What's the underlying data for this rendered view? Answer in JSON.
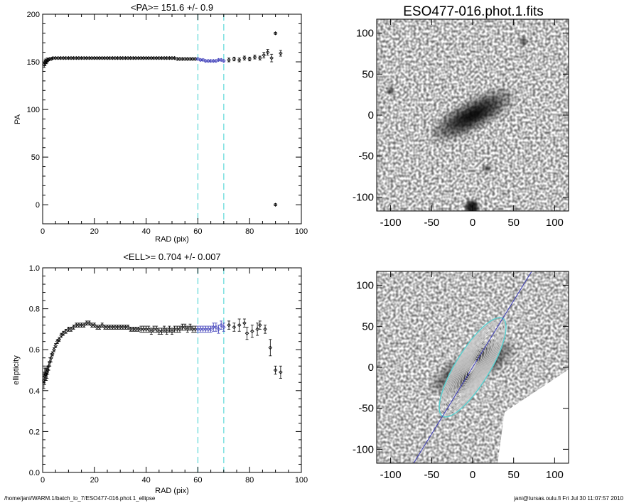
{
  "footer": {
    "left": "/home/jani/WARM.1/batch_lo_7/ESO477-016.phot.1_ellipse",
    "right": "jani@tursas.oulu.fi  Fri Jul 30 11:07:57 2010"
  },
  "colors": {
    "dashed_lines": "#7fe0e0",
    "fit_points": "#3b3bb8",
    "ellipse_inner": "#c8c8c8",
    "ellipse_outer": "#5ad0d0"
  },
  "chart_data": [
    {
      "type": "scatter",
      "title": "<PA>= 151.6 +/-    0.9",
      "xlabel": "RAD (pix)",
      "ylabel": "PA",
      "xlim": [
        0,
        100
      ],
      "ylim": [
        -20,
        200
      ],
      "xticks": [
        "0",
        "20",
        "40",
        "60",
        "80",
        "100"
      ],
      "yticks": [
        "0",
        "50",
        "100",
        "150",
        "200"
      ],
      "vlines": [
        60,
        70
      ],
      "fit_range": [
        60,
        70
      ],
      "x": [
        0.6,
        0.9,
        1.2,
        1.5,
        1.8,
        2.2,
        2.7,
        3.3,
        4,
        5,
        6,
        7,
        8,
        9,
        10,
        11,
        12,
        13,
        14,
        15,
        16,
        17,
        18,
        19,
        20,
        21,
        22,
        23,
        24,
        25,
        26,
        27,
        28,
        29,
        30,
        31,
        32,
        33,
        34,
        35,
        36,
        37,
        38,
        39,
        40,
        41,
        42,
        43,
        44,
        45,
        46,
        47,
        48,
        49,
        50,
        51,
        52,
        53,
        54,
        55,
        56,
        57,
        58,
        59,
        60,
        61,
        62,
        63,
        64,
        65,
        66,
        67,
        68,
        69,
        70,
        72,
        74,
        76,
        78,
        80,
        82,
        84,
        85.5,
        87,
        88.5,
        90,
        90,
        92
      ],
      "y": [
        147,
        149,
        151,
        150,
        152,
        152,
        153,
        153,
        154,
        154,
        154,
        154,
        154,
        154,
        154,
        154,
        154,
        154,
        154,
        154,
        154,
        154,
        154,
        154,
        154,
        154,
        154,
        154,
        154,
        154,
        154,
        154,
        154,
        154,
        154,
        154,
        154,
        154,
        154,
        154,
        154,
        154,
        154,
        154,
        154,
        154,
        154,
        154,
        154,
        154,
        154,
        154,
        154,
        154,
        154,
        154,
        153,
        153,
        153,
        153,
        153,
        153,
        153,
        153,
        153,
        152,
        152,
        151,
        151,
        151,
        151,
        151,
        152,
        152,
        151,
        152,
        153,
        152,
        154,
        153,
        155,
        154,
        157,
        160,
        154,
        180,
        0,
        159
      ],
      "yerr": [
        3,
        3,
        2,
        2,
        2,
        1,
        1,
        1,
        1,
        1,
        1,
        1,
        1,
        1,
        1,
        1,
        1,
        1,
        1,
        1,
        1,
        1,
        1,
        1,
        1,
        1,
        1,
        1,
        1,
        1,
        1,
        1,
        1,
        1,
        1,
        1,
        1,
        1,
        1,
        1,
        1,
        1,
        1,
        1,
        1,
        1,
        1,
        1,
        1,
        1,
        1,
        1,
        1,
        1,
        1,
        1,
        1,
        1,
        1,
        1,
        1,
        1,
        1,
        1,
        1,
        1,
        1,
        1,
        1,
        1,
        1,
        1,
        1,
        1,
        1,
        2,
        2,
        2,
        2,
        2,
        2,
        2,
        3,
        3,
        4,
        1,
        1,
        3
      ]
    },
    {
      "type": "scatter",
      "title": "<ELL>= 0.704 +/-  0.007",
      "xlabel": "RAD (pix)",
      "ylabel": "ellipticity",
      "xlim": [
        0,
        100
      ],
      "ylim": [
        0,
        1
      ],
      "xticks": [
        "0",
        "20",
        "40",
        "60",
        "80",
        "100"
      ],
      "yticks": [
        "0.0",
        "0.2",
        "0.4",
        "0.6",
        "0.8",
        "1.0"
      ],
      "vlines": [
        60,
        70
      ],
      "fit_range": [
        60,
        70
      ],
      "x": [
        0.5,
        0.8,
        1.1,
        1.4,
        1.7,
        2.0,
        2.4,
        2.8,
        3.3,
        3.8,
        4.4,
        5,
        5.7,
        6.4,
        7.2,
        8,
        9,
        10,
        11,
        12,
        13,
        14,
        15,
        16,
        17,
        18,
        19,
        20,
        21,
        22,
        23,
        24,
        25,
        26,
        27,
        28,
        29,
        30,
        31,
        32,
        33,
        34,
        35,
        36,
        37,
        38,
        39,
        40,
        41,
        42,
        43,
        44,
        45,
        46,
        47,
        48,
        49,
        50,
        51,
        52,
        53,
        54,
        55,
        56,
        57,
        58,
        59,
        60,
        61,
        62,
        63,
        64,
        65,
        66,
        67,
        68,
        69,
        70,
        72,
        74,
        76,
        78,
        79,
        81,
        83,
        84,
        86,
        88,
        90,
        92
      ],
      "y": [
        0.45,
        0.47,
        0.48,
        0.48,
        0.49,
        0.5,
        0.52,
        0.54,
        0.56,
        0.58,
        0.6,
        0.62,
        0.64,
        0.65,
        0.67,
        0.68,
        0.69,
        0.7,
        0.7,
        0.71,
        0.72,
        0.72,
        0.72,
        0.72,
        0.73,
        0.73,
        0.72,
        0.72,
        0.71,
        0.71,
        0.72,
        0.71,
        0.71,
        0.71,
        0.71,
        0.71,
        0.71,
        0.71,
        0.71,
        0.71,
        0.71,
        0.7,
        0.7,
        0.7,
        0.7,
        0.7,
        0.7,
        0.7,
        0.7,
        0.69,
        0.7,
        0.7,
        0.69,
        0.69,
        0.7,
        0.69,
        0.7,
        0.69,
        0.7,
        0.7,
        0.7,
        0.71,
        0.71,
        0.7,
        0.71,
        0.7,
        0.7,
        0.7,
        0.7,
        0.7,
        0.7,
        0.7,
        0.7,
        0.71,
        0.71,
        0.7,
        0.72,
        0.71,
        0.72,
        0.71,
        0.72,
        0.73,
        0.68,
        0.69,
        0.7,
        0.72,
        0.7,
        0.61,
        0.5,
        0.49
      ],
      "yerr": [
        0.04,
        0.04,
        0.03,
        0.03,
        0.03,
        0.02,
        0.02,
        0.02,
        0.02,
        0.01,
        0.01,
        0.01,
        0.01,
        0.01,
        0.01,
        0.01,
        0.01,
        0.01,
        0.01,
        0.01,
        0.01,
        0.01,
        0.01,
        0.01,
        0.01,
        0.01,
        0.01,
        0.01,
        0.01,
        0.01,
        0.01,
        0.01,
        0.01,
        0.01,
        0.01,
        0.01,
        0.01,
        0.01,
        0.01,
        0.01,
        0.01,
        0.01,
        0.01,
        0.01,
        0.01,
        0.015,
        0.015,
        0.015,
        0.015,
        0.015,
        0.015,
        0.015,
        0.015,
        0.015,
        0.015,
        0.015,
        0.015,
        0.015,
        0.015,
        0.015,
        0.015,
        0.015,
        0.015,
        0.015,
        0.015,
        0.015,
        0.015,
        0.015,
        0.015,
        0.015,
        0.015,
        0.015,
        0.015,
        0.02,
        0.02,
        0.02,
        0.02,
        0.02,
        0.02,
        0.02,
        0.03,
        0.02,
        0.03,
        0.03,
        0.03,
        0.02,
        0.02,
        0.04,
        0.02,
        0.03
      ]
    },
    {
      "type": "heatmap",
      "title": "ESO477-016.phot.1.fits",
      "xlim": [
        -117,
        117
      ],
      "ylim": [
        -117,
        117
      ],
      "xticks": [
        "-100",
        "-50",
        "0",
        "50",
        "100"
      ],
      "yticks": [
        "-100",
        "-50",
        "0",
        "50",
        "100"
      ],
      "colormap": "gray_reversed",
      "galaxy": {
        "center": [
          0,
          0
        ],
        "position_angle_deg": 151.6,
        "ellipticity": 0.704,
        "major_radius": 55
      },
      "stars": [
        [
          -1,
          -112
        ],
        [
          18,
          -65
        ],
        [
          -100,
          30
        ],
        [
          62,
          90
        ]
      ]
    },
    {
      "type": "heatmap",
      "title": "",
      "xlim": [
        -117,
        117
      ],
      "ylim": [
        -117,
        117
      ],
      "xticks": [
        "-100",
        "-50",
        "0",
        "50",
        "100"
      ],
      "yticks": [
        "-100",
        "-50",
        "0",
        "50",
        "100"
      ],
      "colormap": "gray_reversed",
      "ellipse_radii": [
        4,
        7,
        10,
        13,
        16,
        19,
        22,
        25,
        28,
        31,
        34,
        37,
        40,
        43,
        46,
        49,
        52,
        55,
        58,
        61,
        64,
        67,
        70
      ],
      "fit_ellipse_radii": [
        60,
        65,
        70
      ],
      "position_angle_deg": 151.6,
      "ellipticity": 0.704,
      "major_axis_line": true
    }
  ]
}
